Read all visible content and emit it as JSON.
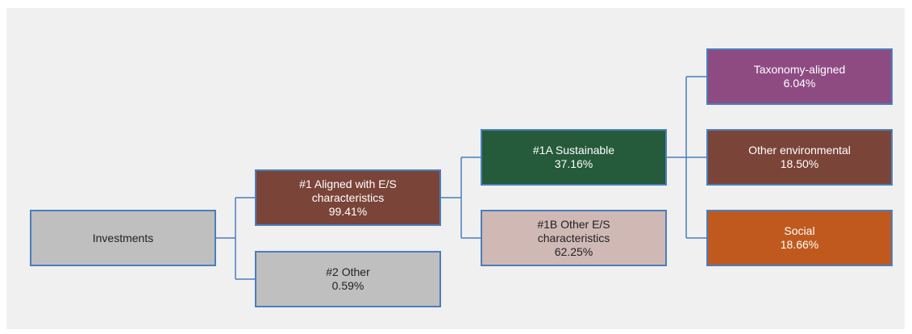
{
  "nodes": [
    {
      "label": "Investments"
    },
    {
      "label": "#1 Aligned with E/S characteristics",
      "value": "99.41%"
    },
    {
      "label": "#2 Other",
      "value": "0.59%"
    },
    {
      "label": "#1A Sustainable",
      "value": "37.16%"
    },
    {
      "label": "#1B Other E/S characteristics",
      "value": "62.25%"
    },
    {
      "label": "Taxonomy-aligned",
      "value": "6.04%"
    },
    {
      "label": "Other environmental",
      "value": "18.50%"
    },
    {
      "label": "Social",
      "value": "18.66%"
    }
  ]
}
